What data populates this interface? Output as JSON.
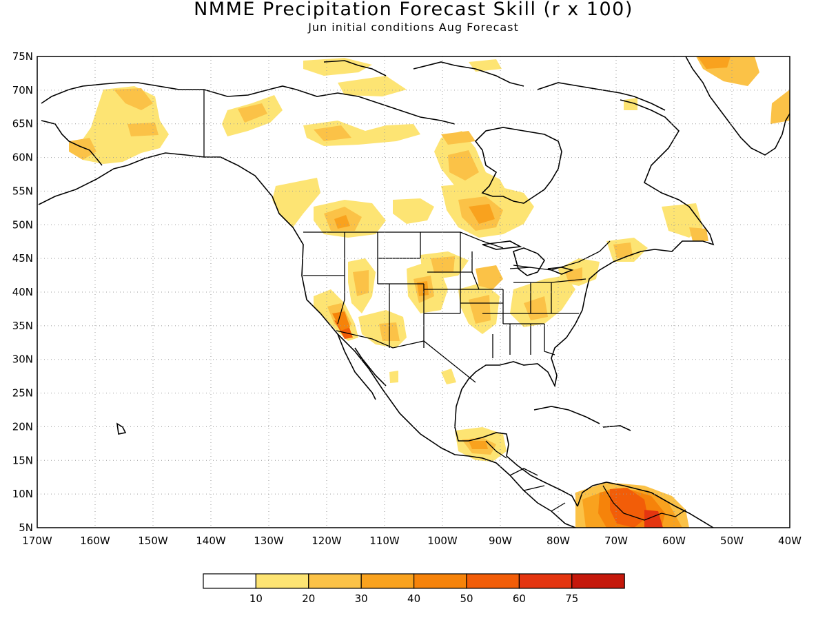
{
  "header": {
    "title": "NMME Precipitation Forecast Skill (r x 100)",
    "subtitle": "Jun initial conditions  Aug Forecast"
  },
  "map": {
    "lat_labels": [
      "75N",
      "70N",
      "65N",
      "60N",
      "55N",
      "50N",
      "45N",
      "40N",
      "35N",
      "30N",
      "25N",
      "20N",
      "15N",
      "10N",
      "5N"
    ],
    "lon_labels": [
      "170W",
      "160W",
      "150W",
      "140W",
      "130W",
      "120W",
      "110W",
      "100W",
      "90W",
      "80W",
      "70W",
      "60W",
      "50W",
      "40W"
    ],
    "lat_values": [
      75,
      70,
      65,
      60,
      55,
      50,
      45,
      40,
      35,
      30,
      25,
      20,
      15,
      10,
      5
    ],
    "lon_values": [
      -170,
      -160,
      -150,
      -140,
      -130,
      -120,
      -110,
      -100,
      -90,
      -80,
      -70,
      -60,
      -50,
      -40
    ],
    "extent": {
      "lon_min": -170,
      "lon_max": -40,
      "lat_min": 5,
      "lat_max": 75
    },
    "grid_style": "dotted"
  },
  "legend": {
    "labels": [
      "10",
      "20",
      "30",
      "40",
      "50",
      "60",
      "75"
    ],
    "colors": [
      "#ffffff",
      "#fde473",
      "#fbc247",
      "#f9a21e",
      "#f6830a",
      "#f25d08",
      "#e43510",
      "#c5180b"
    ],
    "end_color": "#a10705"
  },
  "colors": {
    "c10": "#fde473",
    "c20": "#fbc247",
    "c30": "#f9a21e",
    "c40": "#f6830a",
    "c50": "#f25d08",
    "c60": "#e43510"
  }
}
